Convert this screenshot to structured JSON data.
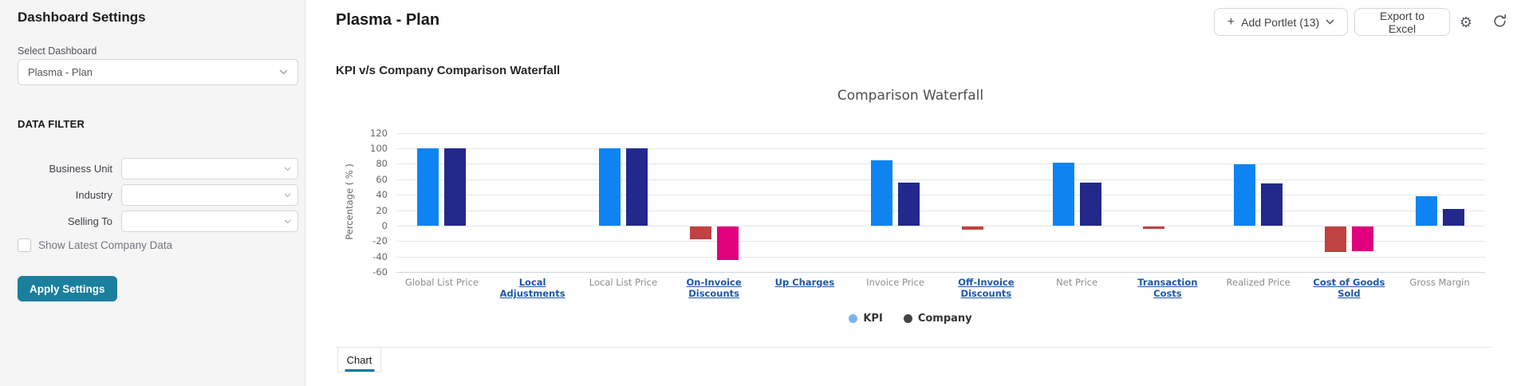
{
  "sidebar": {
    "title": "Dashboard Settings",
    "select_dashboard": {
      "label": "Select Dashboard",
      "value": "Plasma - Plan"
    },
    "data_filter_heading": "DATA FILTER",
    "filters": [
      {
        "label": "Business Unit",
        "value": ""
      },
      {
        "label": "Industry",
        "value": ""
      },
      {
        "label": "Selling To",
        "value": ""
      }
    ],
    "checkbox": {
      "label": "Show Latest Company Data",
      "checked": false
    },
    "apply_button_label": "Apply Settings"
  },
  "header": {
    "title": "Plasma - Plan",
    "add_portlet_label": "Add Portlet (13)",
    "export_label": "Export to Excel",
    "gear_icon": "gear-icon",
    "refresh_icon": "refresh-icon"
  },
  "portlet": {
    "title": "KPI v/s Company Comparison Waterfall"
  },
  "tabs": [
    {
      "label": "Chart",
      "active": true
    }
  ],
  "colors": {
    "accent_teal": "#1b7f9e",
    "tab_underline": "#0f7b97",
    "kpi_positive": "#0d84f2",
    "kpi_negative": "#bf4342",
    "company_positive": "#22298b",
    "company_negative": "#e0007d",
    "legend_kpi": "#7cb5ec",
    "legend_company": "#434348",
    "link_blue": "#1c57ad"
  },
  "chart_data": {
    "type": "bar",
    "title": "Comparison Waterfall",
    "xlabel": "",
    "ylabel": "Percentage ( % )",
    "ylim": [
      -60,
      120
    ],
    "ytick_step": 20,
    "grid": true,
    "legend_position": "bottom",
    "categories": [
      "Global List Price",
      "Local Adjustments",
      "Local List Price",
      "On-Invoice Discounts",
      "Up Charges",
      "Invoice Price",
      "Off-Invoice Discounts",
      "Net Price",
      "Transaction Costs",
      "Realized Price",
      "Cost of Goods Sold",
      "Gross Margin"
    ],
    "category_is_link": [
      false,
      true,
      false,
      true,
      true,
      false,
      true,
      false,
      true,
      false,
      true,
      false
    ],
    "series": [
      {
        "name": "KPI",
        "values": [
          100,
          0,
          100,
          -16,
          0,
          85,
          -4,
          82,
          -3,
          79,
          -33,
          38
        ],
        "positive_color": "#0d84f2",
        "negative_color": "#bf4342",
        "legend_color": "#7cb5ec"
      },
      {
        "name": "Company",
        "values": [
          100,
          0,
          100,
          -43,
          0,
          56,
          0,
          56,
          0,
          55,
          -32,
          22
        ],
        "positive_color": "#22298b",
        "negative_color": "#e0007d",
        "legend_color": "#434348"
      }
    ]
  }
}
